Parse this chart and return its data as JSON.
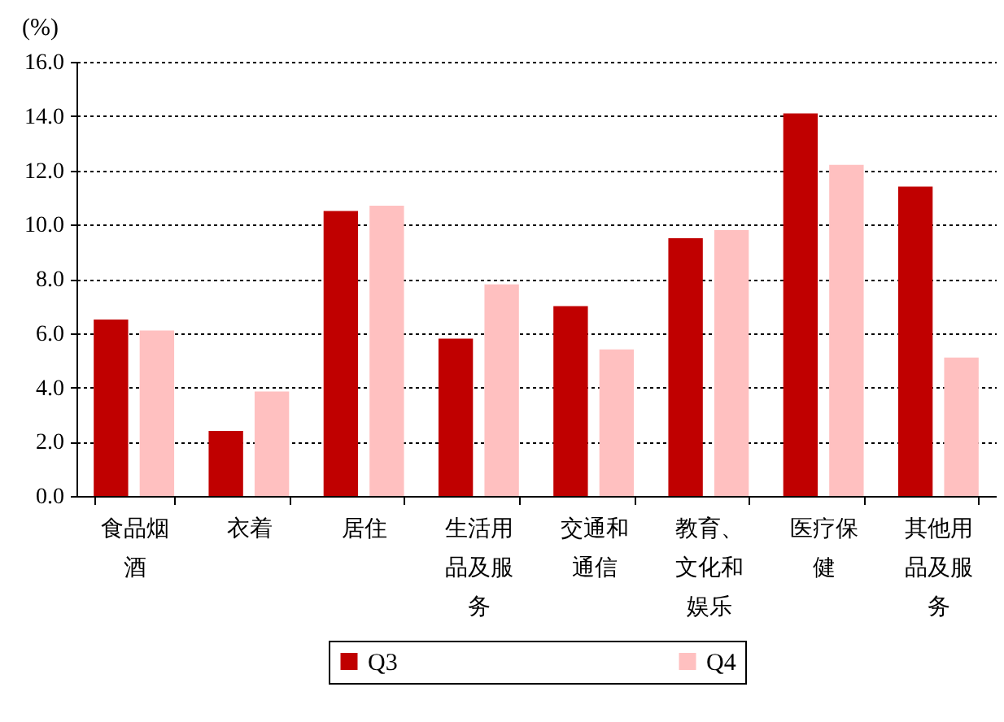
{
  "chart_data": {
    "type": "bar",
    "ylabel": "(%)",
    "categories": [
      "食品烟酒",
      "衣着",
      "居住",
      "生活用品及服务",
      "交通和通信",
      "教育、文化和娱乐",
      "医疗保健",
      "其他用品及服务"
    ],
    "series": [
      {
        "name": "Q3",
        "color": "#c00000",
        "values": [
          6.5,
          2.4,
          10.5,
          5.8,
          7.0,
          9.5,
          14.1,
          11.4
        ]
      },
      {
        "name": "Q4",
        "color": "#ffc0c0",
        "values": [
          6.1,
          3.85,
          10.7,
          7.8,
          5.4,
          9.8,
          12.2,
          5.1
        ]
      }
    ],
    "ylim": [
      0,
      16
    ],
    "yticks": [
      {
        "value": 0,
        "label": "0.0"
      },
      {
        "value": 2,
        "label": "2.0"
      },
      {
        "value": 4,
        "label": "4.0"
      },
      {
        "value": 6,
        "label": "6.0"
      },
      {
        "value": 8,
        "label": "8.0"
      },
      {
        "value": 10,
        "label": "10.0"
      },
      {
        "value": 12,
        "label": "12.0"
      },
      {
        "value": 14,
        "label": "14.0"
      },
      {
        "value": 16,
        "label": "16.0"
      }
    ],
    "grid": "y",
    "legend": "bottom"
  }
}
